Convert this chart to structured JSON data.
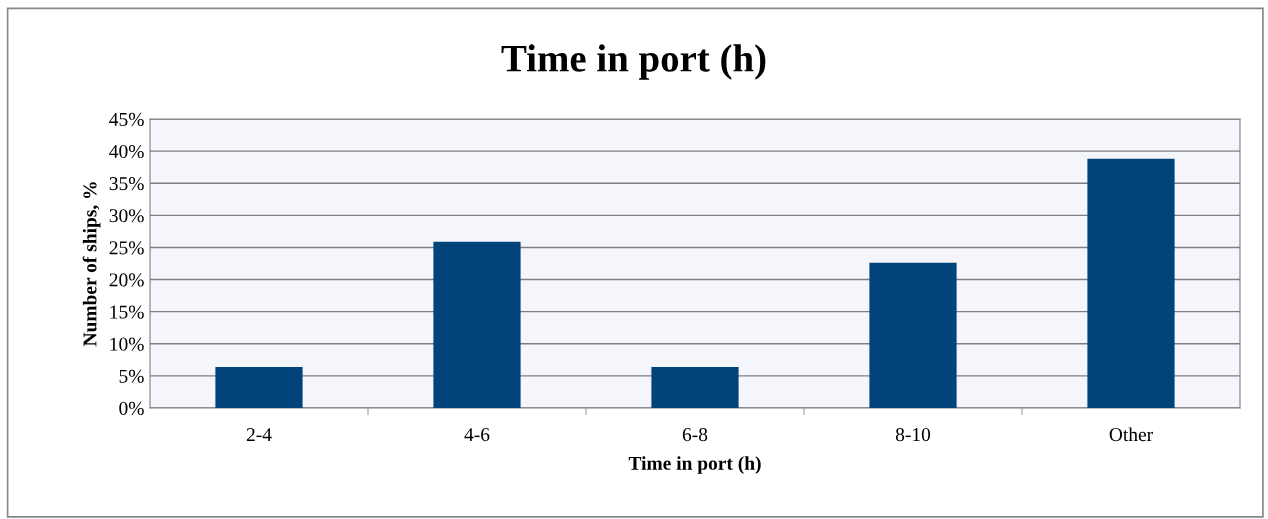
{
  "chart_data": {
    "type": "bar",
    "title": "Time in port (h)",
    "xlabel": "Time in port (h)",
    "ylabel": "Number of ships, %",
    "categories": [
      "2-4",
      "4-6",
      "6-8",
      "8-10",
      "Other"
    ],
    "values": [
      6.4,
      25.9,
      6.4,
      22.6,
      38.8
    ],
    "color": "#004479",
    "ylim": [
      0,
      45
    ],
    "yticks": [
      {
        "value": 0,
        "label": "0%"
      },
      {
        "value": 5,
        "label": "5%"
      },
      {
        "value": 10,
        "label": "10%"
      },
      {
        "value": 15,
        "label": "15%"
      },
      {
        "value": 20,
        "label": "20%"
      },
      {
        "value": 25,
        "label": "25%"
      },
      {
        "value": 30,
        "label": "30%"
      },
      {
        "value": 35,
        "label": "35%"
      },
      {
        "value": 40,
        "label": "40%"
      },
      {
        "value": 45,
        "label": "45%"
      }
    ],
    "grid": "y",
    "legend": false
  }
}
